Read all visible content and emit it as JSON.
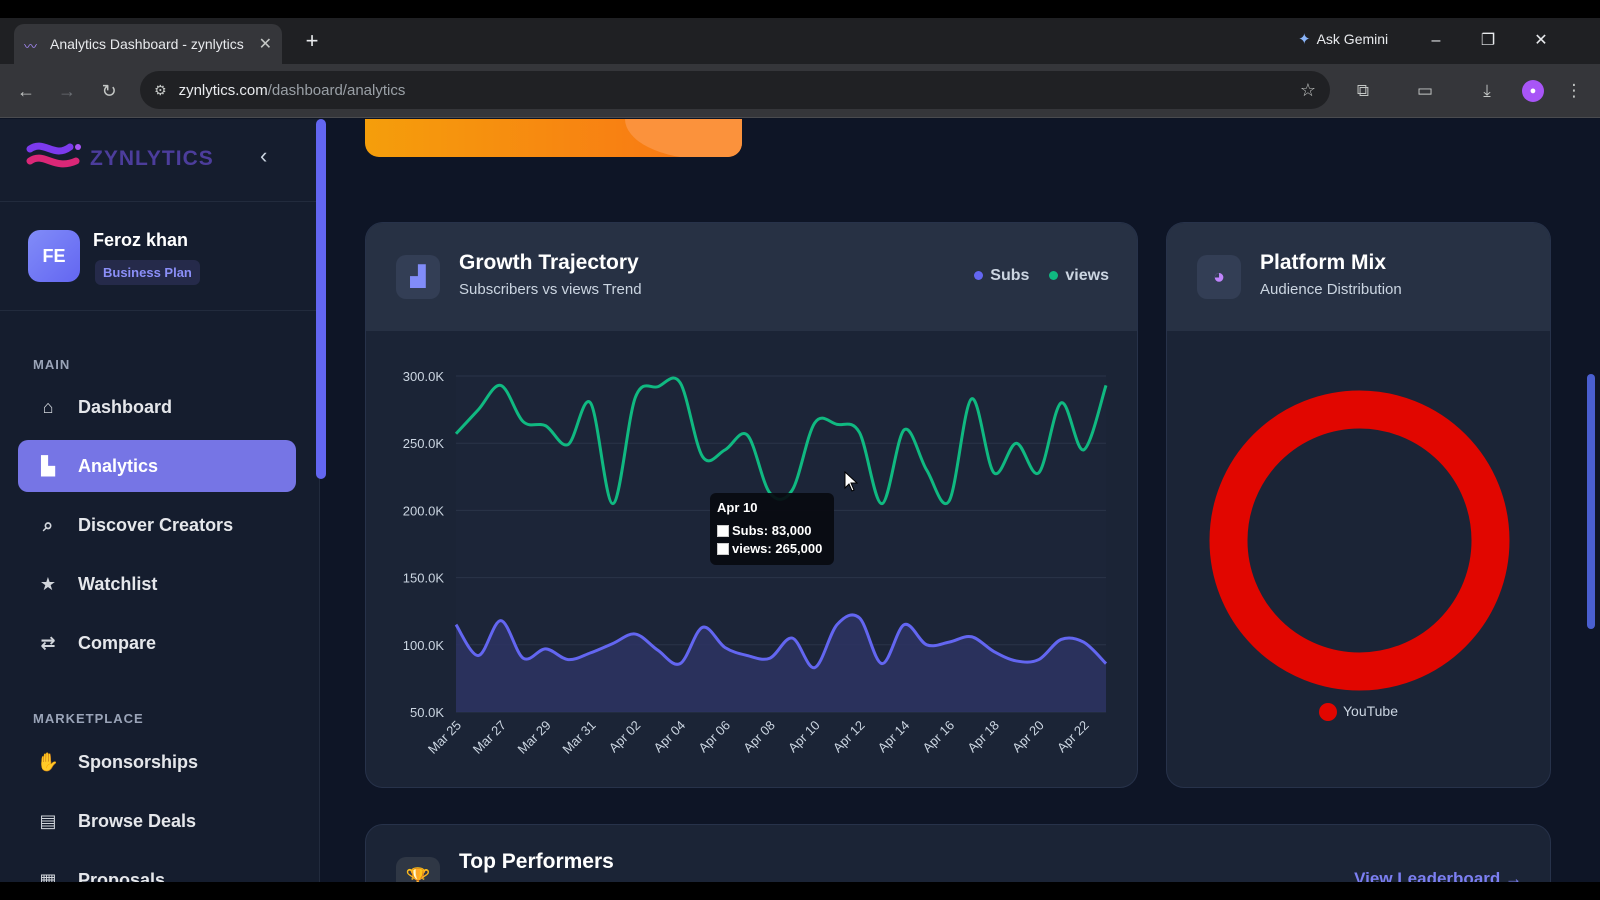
{
  "browser": {
    "tab_title": "Analytics Dashboard - zynlytics",
    "url_host": "zynlytics.com",
    "url_path": "/dashboard/analytics",
    "ask_gemini": "Ask Gemini"
  },
  "sidebar": {
    "brand": "ZYNLYTICS",
    "user": {
      "initials": "FE",
      "name": "Feroz khan",
      "plan": "Business Plan"
    },
    "sections": [
      {
        "title": "MAIN"
      },
      {
        "title": "MARKETPLACE"
      }
    ],
    "main_items": [
      {
        "label": "Dashboard",
        "icon": "home-icon"
      },
      {
        "label": "Analytics",
        "icon": "bar-chart-icon",
        "active": true
      },
      {
        "label": "Discover Creators",
        "icon": "search-icon"
      },
      {
        "label": "Watchlist",
        "icon": "star-icon"
      },
      {
        "label": "Compare",
        "icon": "compare-icon"
      }
    ],
    "marketplace_items": [
      {
        "label": "Sponsorships",
        "icon": "handshake-icon"
      },
      {
        "label": "Browse Deals",
        "icon": "store-icon"
      },
      {
        "label": "Proposals",
        "icon": "document-icon"
      }
    ]
  },
  "growth_card": {
    "title": "Growth Trajectory",
    "subtitle": "Subscribers vs views Trend",
    "legend": [
      {
        "name": "Subs",
        "color": "#6366f1"
      },
      {
        "name": "views",
        "color": "#10b981"
      }
    ],
    "tooltip": {
      "date": "Apr 10",
      "subs_line": "Subs: 83,000",
      "views_line": "views: 265,000"
    }
  },
  "chart_data": {
    "type": "line",
    "x": [
      "Mar 25",
      "Mar 26",
      "Mar 27",
      "Mar 28",
      "Mar 29",
      "Mar 30",
      "Mar 31",
      "Apr 01",
      "Apr 02",
      "Apr 03",
      "Apr 04",
      "Apr 05",
      "Apr 06",
      "Apr 07",
      "Apr 08",
      "Apr 09",
      "Apr 10",
      "Apr 11",
      "Apr 12",
      "Apr 13",
      "Apr 14",
      "Apr 15",
      "Apr 16",
      "Apr 17",
      "Apr 18",
      "Apr 19",
      "Apr 20",
      "Apr 21",
      "Apr 22",
      "Apr 23"
    ],
    "x_tick_labels": [
      "Mar 25",
      "Mar 27",
      "Mar 29",
      "Mar 31",
      "Apr 02",
      "Apr 04",
      "Apr 06",
      "Apr 08",
      "Apr 10",
      "Apr 12",
      "Apr 14",
      "Apr 16",
      "Apr 18",
      "Apr 20",
      "Apr 22"
    ],
    "y_tick_labels": [
      "300.0K",
      "250.0K",
      "200.0K",
      "150.0K",
      "100.0K",
      "50.0K"
    ],
    "ylim": [
      50000,
      300000
    ],
    "series": [
      {
        "name": "Subs",
        "color": "#6366f1",
        "fill": true,
        "values": [
          115000,
          92000,
          118000,
          90000,
          97000,
          89000,
          94000,
          101000,
          108000,
          96000,
          86000,
          113000,
          98000,
          92000,
          90000,
          105000,
          83000,
          115000,
          120000,
          86000,
          115000,
          100000,
          102000,
          106000,
          95000,
          88000,
          89000,
          104000,
          102000,
          86000
        ]
      },
      {
        "name": "views",
        "color": "#10b981",
        "values": [
          257000,
          275000,
          293000,
          266000,
          263000,
          249000,
          280000,
          205000,
          284000,
          292000,
          295000,
          240000,
          245000,
          256000,
          213000,
          215000,
          265000,
          264000,
          258000,
          205000,
          260000,
          230000,
          207000,
          283000,
          228000,
          250000,
          228000,
          280000,
          245000,
          293000
        ]
      }
    ]
  },
  "platform_card": {
    "title": "Platform Mix",
    "subtitle": "Audience Distribution",
    "legend": [
      {
        "name": "YouTube",
        "color": "#e10600"
      }
    ],
    "slices": [
      {
        "name": "YouTube",
        "value": 100
      }
    ]
  },
  "top_card": {
    "title": "Top Performers",
    "link": "View Leaderboard →"
  }
}
